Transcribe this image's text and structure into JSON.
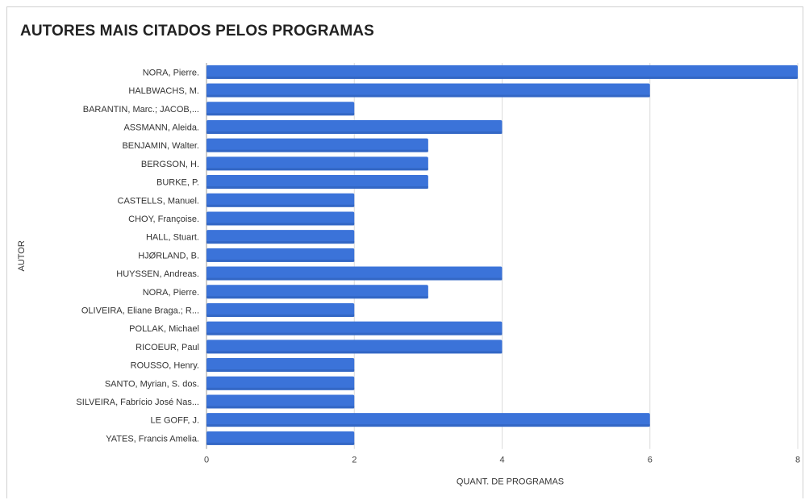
{
  "chart_data": {
    "type": "bar",
    "orientation": "horizontal",
    "title": "AUTORES MAIS CITADOS PELOS PROGRAMAS",
    "xlabel": "QUANT. DE PROGRAMAS",
    "ylabel": "AUTOR",
    "xlim": [
      0,
      8
    ],
    "xticks": [
      "0",
      "2",
      "4",
      "6",
      "8"
    ],
    "grid": true,
    "legend": "none",
    "bar_color": "#3b73d9",
    "categories": [
      "NORA, Pierre.",
      "HALBWACHS, M.",
      "BARANTIN, Marc.; JACOB,...",
      "ASSMANN, Aleida.",
      "BENJAMIN, Walter.",
      "BERGSON, H.",
      "BURKE, P.",
      "CASTELLS, Manuel.",
      "CHOY, Françoise.",
      "HALL, Stuart.",
      "HJØRLAND, B.",
      "HUYSSEN, Andreas.",
      "NORA, Pierre.",
      "OLIVEIRA, Eliane Braga.; R...",
      "POLLAK, Michael",
      "RICOEUR, Paul",
      "ROUSSO, Henry.",
      "SANTO, Myrian, S. dos.",
      "SILVEIRA, Fabrício José Nas...",
      "LE GOFF, J.",
      "YATES, Francis Amelia."
    ],
    "values": [
      8,
      6,
      2,
      4,
      3,
      3,
      3,
      2,
      2,
      2,
      2,
      4,
      3,
      2,
      4,
      4,
      2,
      2,
      2,
      6,
      2
    ]
  }
}
